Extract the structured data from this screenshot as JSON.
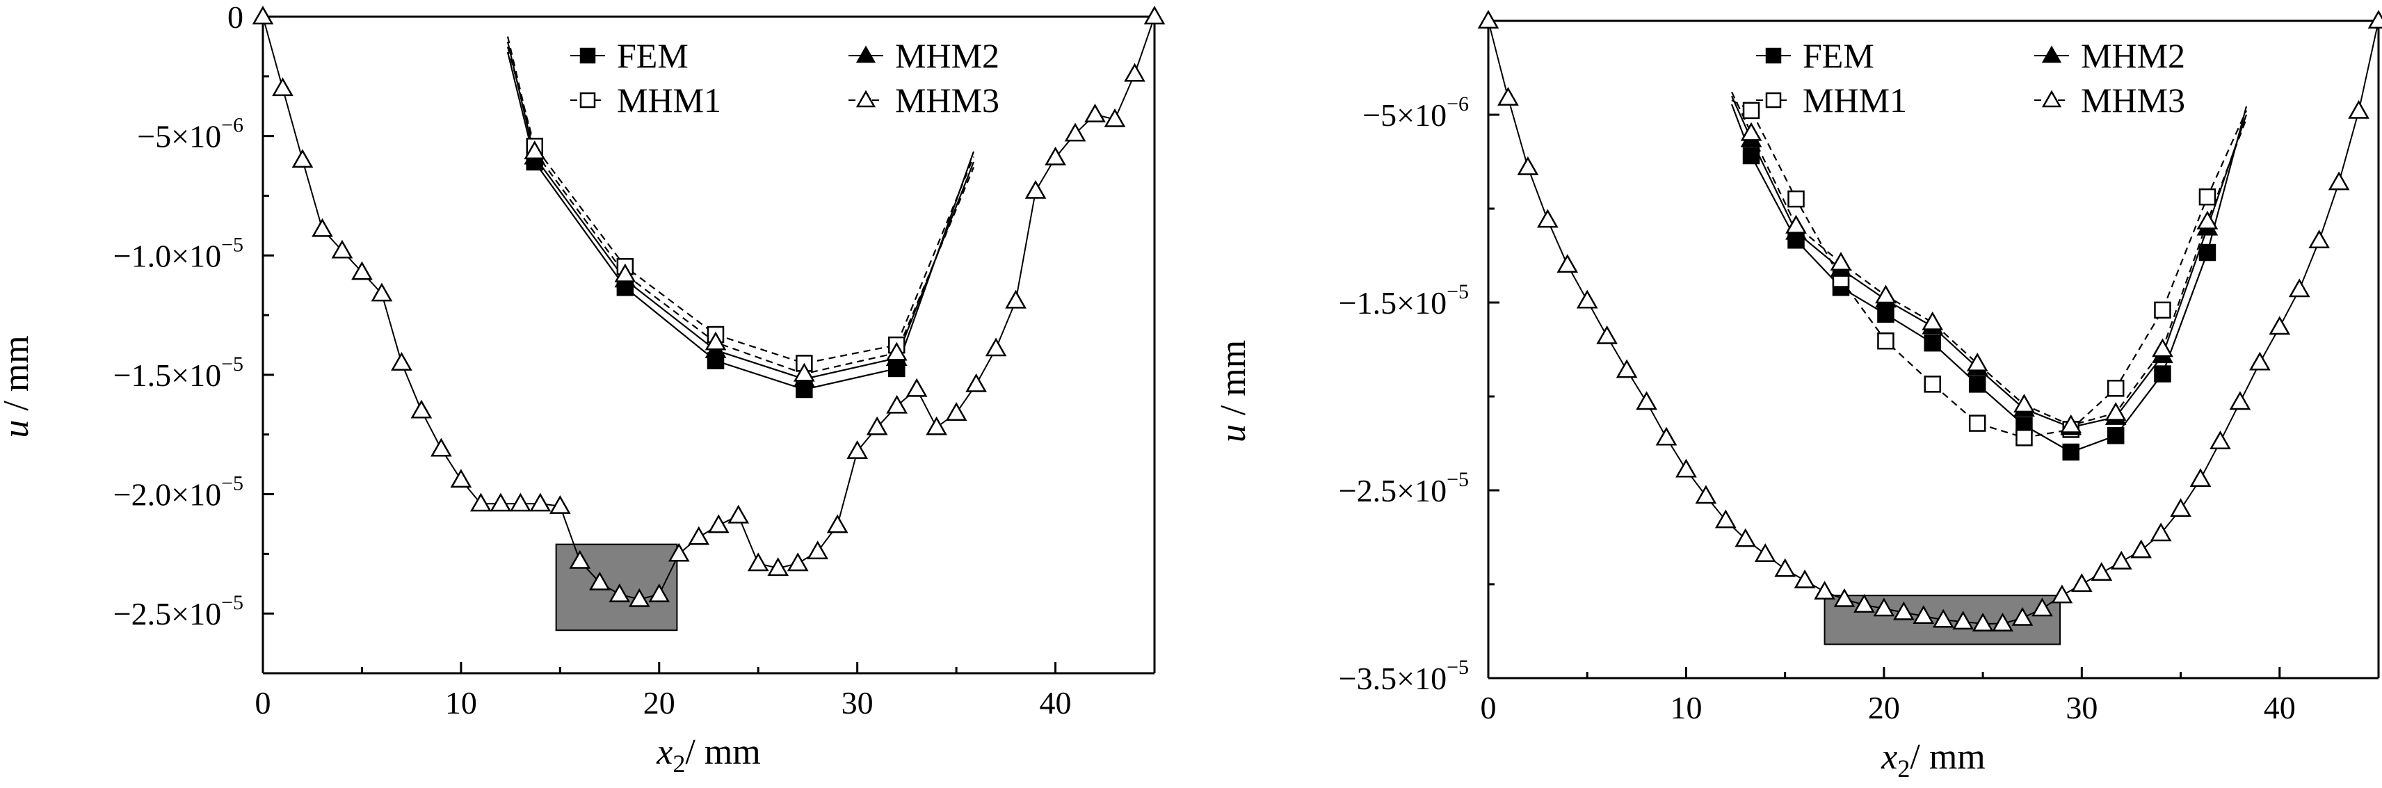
{
  "chart_data": [
    {
      "type": "line",
      "xlabel": "x2 / mm",
      "xlabel_parts": {
        "var": "x",
        "sub": "2",
        "unit": "/ mm"
      },
      "ylabel": "u / mm",
      "ylabel_parts": {
        "var": "u",
        "unit": " / mm"
      },
      "xlim": [
        0,
        45
      ],
      "ylim": [
        -2.75e-05,
        0
      ],
      "x_ticks": [
        0,
        10,
        20,
        30,
        40
      ],
      "x_tick_labels": [
        "0",
        "10",
        "20",
        "30",
        "40"
      ],
      "y_ticks": [
        0,
        -5e-06,
        -1e-05,
        -1.5e-05,
        -2e-05,
        -2.5e-05
      ],
      "y_tick_labels": [
        {
          "mant": "0",
          "exp": ""
        },
        {
          "mant": "−5×10",
          "exp": "−6"
        },
        {
          "mant": "−1.0×10",
          "exp": "−5"
        },
        {
          "mant": "−1.5×10",
          "exp": "−5"
        },
        {
          "mant": "−2.0×10",
          "exp": "−5"
        },
        {
          "mant": "−2.5×10",
          "exp": "−5"
        }
      ],
      "legend": [
        "FEM",
        "MHM1",
        "MHM2",
        "MHM3"
      ],
      "legend_position": "top-center",
      "main_curve": {
        "x": [
          0,
          1,
          2,
          3,
          4,
          5,
          6,
          7,
          8,
          9,
          10,
          11,
          12,
          13,
          14,
          15,
          16,
          17,
          18,
          19,
          20,
          21,
          22,
          23,
          24,
          25,
          26,
          27,
          28,
          29,
          30,
          31,
          32,
          33,
          34,
          35,
          36,
          37,
          38,
          39,
          40,
          41,
          42,
          43,
          44,
          45
        ],
        "y": [
          0,
          -3e-06,
          -6e-06,
          -8.9e-06,
          -9.8e-06,
          -1.07e-05,
          -1.16e-05,
          -1.45e-05,
          -1.65e-05,
          -1.81e-05,
          -1.94e-05,
          -2.04e-05,
          -2.04e-05,
          -2.04e-05,
          -2.04e-05,
          -2.05e-05,
          -2.28e-05,
          -2.37e-05,
          -2.42e-05,
          -2.44e-05,
          -2.42e-05,
          -2.25e-05,
          -2.18e-05,
          -2.13e-05,
          -2.09e-05,
          -2.29e-05,
          -2.31e-05,
          -2.29e-05,
          -2.24e-05,
          -2.13e-05,
          -1.82e-05,
          -1.72e-05,
          -1.63e-05,
          -1.56e-05,
          -1.72e-05,
          -1.66e-05,
          -1.54e-05,
          -1.39e-05,
          -1.19e-05,
          -7.3e-06,
          -5.9e-06,
          -4.9e-06,
          -4.1e-06,
          -4.3e-06,
          -2.4e-06,
          0
        ]
      },
      "highlight_box": {
        "x": [
          14.8,
          20.9
        ],
        "y": [
          -2.21e-05,
          -2.57e-05
        ]
      },
      "inset": {
        "x": [
          13.2,
          17.9,
          22.6,
          27.2,
          32.0
        ],
        "series": [
          {
            "name": "FEM",
            "y": [
              -5.6e-06,
              -1.04e-05,
              -1.32e-05,
              -1.43e-05,
              -1.35e-05
            ]
          },
          {
            "name": "MHM1",
            "y": [
              -5e-06,
              -9.6e-06,
              -1.22e-05,
              -1.33e-05,
              -1.26e-05
            ]
          },
          {
            "name": "MHM2",
            "y": [
              -5.4e-06,
              -1.01e-05,
              -1.28e-05,
              -1.39e-05,
              -1.31e-05
            ]
          },
          {
            "name": "MHM3",
            "y": [
              -5.2e-06,
              -9.9e-06,
              -1.25e-05,
              -1.37e-05,
              -1.29e-05
            ]
          }
        ],
        "left_x": 11.8,
        "left_y": -1.4e-06,
        "right_x": 36.0,
        "right_y": -5.2e-06
      }
    },
    {
      "type": "line",
      "xlabel": "x2 / mm",
      "xlabel_parts": {
        "var": "x",
        "sub": "2",
        "unit": "/ mm"
      },
      "ylabel": "u / mm",
      "ylabel_parts": {
        "var": "u",
        "unit": " / mm"
      },
      "xlim": [
        0,
        45
      ],
      "ylim": [
        -3.5e-05,
        0
      ],
      "x_ticks": [
        0,
        10,
        20,
        30,
        40
      ],
      "x_tick_labels": [
        "0",
        "10",
        "20",
        "30",
        "40"
      ],
      "y_ticks": [
        -5e-06,
        -1.5e-05,
        -2.5e-05,
        -3.5e-05
      ],
      "y_tick_labels": [
        {
          "mant": "−5×10",
          "exp": "−6"
        },
        {
          "mant": "−1.5×10",
          "exp": "−5"
        },
        {
          "mant": "−2.5×10",
          "exp": "−5"
        },
        {
          "mant": "−3.5×10",
          "exp": "−5"
        }
      ],
      "legend": [
        "FEM",
        "MHM1",
        "MHM2",
        "MHM3"
      ],
      "legend_position": "top-center",
      "main_curve": {
        "x": [
          0,
          1,
          2,
          3,
          4,
          5,
          6,
          7,
          8,
          9,
          10,
          11,
          12,
          13,
          14,
          15,
          16,
          17,
          18,
          19,
          20,
          21,
          22,
          23,
          24,
          25,
          26,
          27,
          28,
          29,
          30,
          31,
          32,
          33,
          34,
          35,
          36,
          37,
          38,
          39,
          40,
          41,
          42,
          43,
          44,
          45
        ],
        "y": [
          0,
          -4.1e-06,
          -7.8e-06,
          -1.06e-05,
          -1.3e-05,
          -1.49e-05,
          -1.68e-05,
          -1.86e-05,
          -2.03e-05,
          -2.22e-05,
          -2.39e-05,
          -2.53e-05,
          -2.66e-05,
          -2.76e-05,
          -2.84e-05,
          -2.92e-05,
          -2.98e-05,
          -3.04e-05,
          -3.08e-05,
          -3.11e-05,
          -3.13e-05,
          -3.15e-05,
          -3.17e-05,
          -3.19e-05,
          -3.2e-05,
          -3.21e-05,
          -3.21e-05,
          -3.18e-05,
          -3.13e-05,
          -3.06e-05,
          -3e-05,
          -2.94e-05,
          -2.88e-05,
          -2.82e-05,
          -2.73e-05,
          -2.6e-05,
          -2.44e-05,
          -2.24e-05,
          -2.03e-05,
          -1.82e-05,
          -1.63e-05,
          -1.43e-05,
          -1.17e-05,
          -8.6e-06,
          -4.8e-06,
          0
        ]
      },
      "highlight_box": {
        "x": [
          17.0,
          28.9
        ],
        "y": [
          -3.06e-05,
          -3.32e-05
        ]
      },
      "inset": {
        "x": [
          12.6,
          14.9,
          17.2,
          19.5,
          21.9,
          24.2,
          26.6,
          29.0,
          31.3,
          33.7,
          36.0
        ],
        "series": [
          {
            "name": "FEM",
            "y": [
              -7.3e-06,
              -1.14e-05,
              -1.37e-05,
              -1.5e-05,
              -1.64e-05,
              -1.84e-05,
              -2.04e-05,
              -2.17e-05,
              -2.09e-05,
              -1.79e-05,
              -1.2e-05
            ]
          },
          {
            "name": "MHM1",
            "y": [
              -5.1e-06,
              -9.4e-06,
              -1.33e-05,
              -1.63e-05,
              -1.84e-05,
              -2.03e-05,
              -2.1e-05,
              -2.06e-05,
              -1.86e-05,
              -1.48e-05,
              -9.3e-06
            ]
          },
          {
            "name": "MHM2",
            "y": [
              -6.5e-06,
              -1.1e-05,
              -1.28e-05,
              -1.43e-05,
              -1.56e-05,
              -1.76e-05,
              -1.96e-05,
              -2.05e-05,
              -2e-05,
              -1.7e-05,
              -1.08e-05
            ]
          },
          {
            "name": "MHM3",
            "y": [
              -6.2e-06,
              -1.07e-05,
              -1.25e-05,
              -1.41e-05,
              -1.54e-05,
              -1.74e-05,
              -1.94e-05,
              -2.04e-05,
              -1.98e-05,
              -1.67e-05,
              -1.05e-05
            ]
          }
        ],
        "left_x": 11.6,
        "left_y": -4.8e-06,
        "right_x": 38.0,
        "right_y": -4.9e-06
      }
    }
  ]
}
